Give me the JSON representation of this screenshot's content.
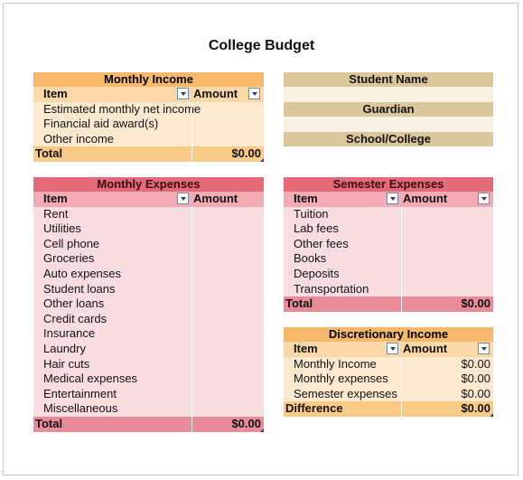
{
  "title": "College Budget",
  "monthly_income": {
    "header": "Monthly Income",
    "col_item": "Item",
    "col_amount": "Amount",
    "rows": [
      "Estimated monthly net income",
      "Financial aid award(s)",
      "Other income"
    ],
    "total_label": "Total",
    "total_value": "$0.00"
  },
  "student": {
    "name_label": "Student Name",
    "guardian_label": "Guardian",
    "school_label": "School/College"
  },
  "monthly_expenses": {
    "header": "Monthly Expenses",
    "col_item": "Item",
    "col_amount": "Amount",
    "rows": [
      "Rent",
      "Utilities",
      "Cell phone",
      "Groceries",
      "Auto expenses",
      "Student loans",
      "Other loans",
      "Credit cards",
      "Insurance",
      "Laundry",
      "Hair cuts",
      "Medical expenses",
      "Entertainment",
      "Miscellaneous"
    ],
    "total_label": "Total",
    "total_value": "$0.00"
  },
  "semester_expenses": {
    "header": "Semester Expenses",
    "col_item": "Item",
    "col_amount": "Amount",
    "rows": [
      "Tuition",
      "Lab fees",
      "Other fees",
      "Books",
      "Deposits",
      "Transportation"
    ],
    "total_label": "Total",
    "total_value": "$0.00"
  },
  "discretionary_income": {
    "header": "Discretionary Income",
    "col_item": "Item",
    "col_amount": "Amount",
    "rows": [
      {
        "label": "Monthly Income",
        "value": "$0.00"
      },
      {
        "label": "Monthly expenses",
        "value": "$0.00"
      },
      {
        "label": "Semester expenses",
        "value": "$0.00"
      }
    ],
    "total_label": "Difference",
    "total_value": "$0.00"
  }
}
